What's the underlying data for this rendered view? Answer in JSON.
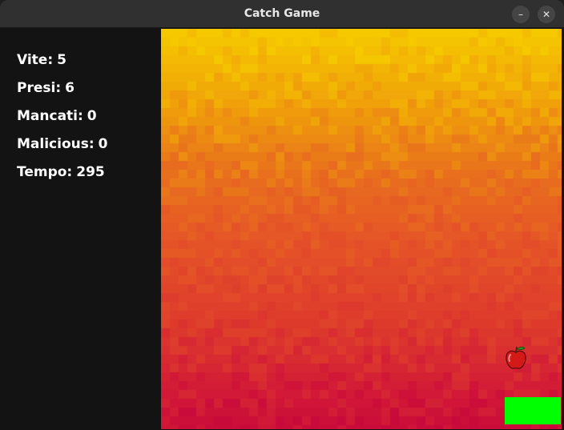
{
  "window": {
    "title": "Catch Game",
    "minimize_label": "–",
    "close_label": "✕"
  },
  "stats": [
    {
      "label": "Vite:",
      "value": "5"
    },
    {
      "label": "Presi:",
      "value": "6"
    },
    {
      "label": "Mancati:",
      "value": "0"
    },
    {
      "label": "Malicious:",
      "value": "0"
    },
    {
      "label": "Tempo:",
      "value": "295"
    }
  ],
  "colors": {
    "paddle": "#00ff00",
    "sky_top": "#f5c800",
    "sky_bottom": "#cc0a38",
    "apple": "#d41919"
  },
  "objects": {
    "falling_item": "apple-icon",
    "player": "green-paddle"
  }
}
